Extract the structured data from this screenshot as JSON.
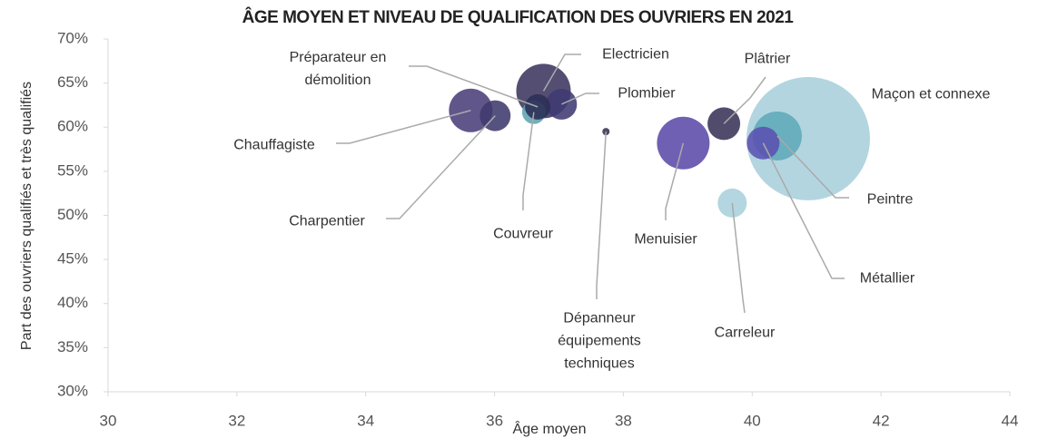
{
  "chart_data": {
    "type": "bubble",
    "title": "ÂGE MOYEN ET NIVEAU DE QUALIFICATION DES OUVRIERS EN 2021",
    "x_label": "Âge moyen",
    "y_label": "Part des ouvriers qualifiés et très qualifiés",
    "xlim": [
      30,
      44
    ],
    "xticks": [
      30,
      32,
      34,
      36,
      38,
      40,
      42,
      44
    ],
    "ylim": [
      30,
      70
    ],
    "yticks": [
      {
        "value": 30,
        "label": "30%"
      },
      {
        "value": 35,
        "label": "35%"
      },
      {
        "value": 40,
        "label": "40%"
      },
      {
        "value": 45,
        "label": "45%"
      },
      {
        "value": 50,
        "label": "50%"
      },
      {
        "value": 55,
        "label": "55%"
      },
      {
        "value": 60,
        "label": "60%"
      },
      {
        "value": 65,
        "label": "65%"
      },
      {
        "value": 70,
        "label": "70%"
      }
    ],
    "series": [
      {
        "name": "Maçon et connexe",
        "color": "#a8cfdc",
        "x": 40.87,
        "y": 58.7,
        "size": 1156
      },
      {
        "name": "Peintre",
        "color": "#5eaab8",
        "x": 40.39,
        "y": 59.0,
        "size": 182
      },
      {
        "name": "Métallier",
        "color": "#5a52b0",
        "x": 40.17,
        "y": 58.2,
        "size": 81
      },
      {
        "name": "Carreleur",
        "color": "#a9d0dc",
        "x": 39.69,
        "y": 51.4,
        "size": 64
      },
      {
        "name": "Plâtrier",
        "color": "#3a3358",
        "x": 39.56,
        "y": 60.4,
        "size": 81
      },
      {
        "name": "Menuisier",
        "color": "#5b4aa8",
        "x": 38.93,
        "y": 58.2,
        "size": 210
      },
      {
        "name": "Dépanneur équipements techniques",
        "color": "#333350",
        "x": 37.73,
        "y": 59.5,
        "size": 4
      },
      {
        "name": "Chauffagiste",
        "color": "#4a3f7a",
        "x": 35.63,
        "y": 61.9,
        "size": 144
      },
      {
        "name": "Charpentier",
        "color": "#3f3a6e",
        "x": 36.01,
        "y": 61.3,
        "size": 72
      },
      {
        "name": "Electricien",
        "color": "#3b355e",
        "x": 36.76,
        "y": 64.1,
        "size": 225
      },
      {
        "name": "Plombier",
        "color": "#3f3a72",
        "x": 37.04,
        "y": 62.6,
        "size": 72
      },
      {
        "name": "Couvreur",
        "color": "#5fa3b0",
        "x": 36.61,
        "y": 61.7,
        "size": 42
      },
      {
        "name": "Préparateur en démolition",
        "color": "#2c2f55",
        "x": 36.67,
        "y": 62.3,
        "size": 49
      }
    ]
  }
}
